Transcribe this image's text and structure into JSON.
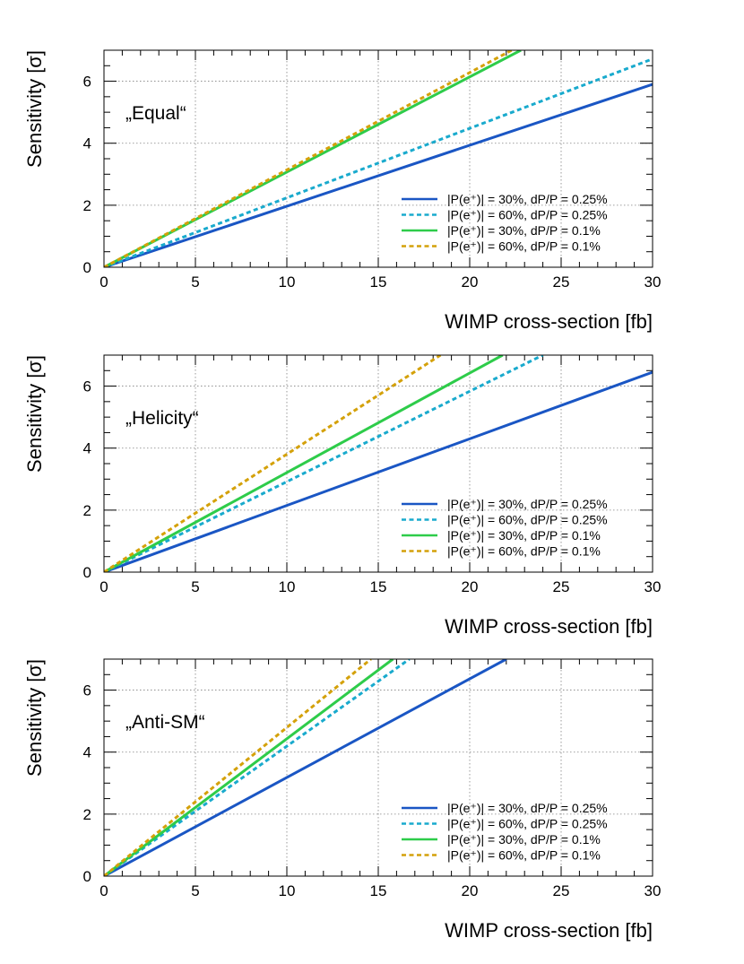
{
  "chart_data": [
    {
      "type": "line",
      "annotation": "„Equal“",
      "xlabel": "WIMP cross-section [fb]",
      "ylabel": "Sensitivity  [σ]",
      "xlim": [
        0,
        30
      ],
      "ylim": [
        0,
        7
      ],
      "xticks": [
        "0",
        "5",
        "10",
        "15",
        "20",
        "25",
        "30"
      ],
      "yticks": [
        "0",
        "2",
        "4",
        "6"
      ],
      "grid": true,
      "legend_position": "bottom-right",
      "series": [
        {
          "name": "|P(e⁺)| = 30%, dP/P = 0.25%",
          "color": "#1a56c4",
          "dash": "solid",
          "x": [
            0,
            30
          ],
          "y": [
            0,
            5.9
          ]
        },
        {
          "name": "|P(e⁺)| = 60%, dP/P = 0.25%",
          "color": "#19aacd",
          "dash": "dashed",
          "x": [
            0,
            30
          ],
          "y": [
            0,
            6.72
          ]
        },
        {
          "name": "|P(e⁺)| = 30%, dP/P = 0.1%",
          "color": "#2ecc4a",
          "dash": "solid",
          "x": [
            0,
            22.8
          ],
          "y": [
            0,
            7.0
          ]
        },
        {
          "name": "|P(e⁺)| = 60%, dP/P = 0.1%",
          "color": "#d4a10a",
          "dash": "dashed",
          "x": [
            0,
            22.3
          ],
          "y": [
            0,
            7.0
          ]
        }
      ]
    },
    {
      "type": "line",
      "annotation": "„Helicity“",
      "xlabel": "WIMP cross-section [fb]",
      "ylabel": "Sensitivity  [σ]",
      "xlim": [
        0,
        30
      ],
      "ylim": [
        0,
        7
      ],
      "xticks": [
        "0",
        "5",
        "10",
        "15",
        "20",
        "25",
        "30"
      ],
      "yticks": [
        "0",
        "2",
        "4",
        "6"
      ],
      "grid": true,
      "legend_position": "bottom-right",
      "series": [
        {
          "name": "|P(e⁺)| = 30%, dP/P = 0.25%",
          "color": "#1a56c4",
          "dash": "solid",
          "x": [
            0,
            30
          ],
          "y": [
            0,
            6.45
          ]
        },
        {
          "name": "|P(e⁺)| = 60%, dP/P = 0.25%",
          "color": "#19aacd",
          "dash": "dashed",
          "x": [
            0,
            24.0
          ],
          "y": [
            0,
            7.0
          ]
        },
        {
          "name": "|P(e⁺)| = 30%, dP/P = 0.1%",
          "color": "#2ecc4a",
          "dash": "solid",
          "x": [
            0,
            21.8
          ],
          "y": [
            0,
            7.0
          ]
        },
        {
          "name": "|P(e⁺)| = 60%, dP/P = 0.1%",
          "color": "#d4a10a",
          "dash": "dashed",
          "x": [
            0,
            18.4
          ],
          "y": [
            0,
            7.0
          ]
        }
      ]
    },
    {
      "type": "line",
      "annotation": "„Anti-SM“",
      "xlabel": "WIMP cross-section [fb]",
      "ylabel": "Sensitivity  [σ]",
      "xlim": [
        0,
        30
      ],
      "ylim": [
        0,
        7
      ],
      "xticks": [
        "0",
        "5",
        "10",
        "15",
        "20",
        "25",
        "30"
      ],
      "yticks": [
        "0",
        "2",
        "4",
        "6"
      ],
      "grid": true,
      "legend_position": "bottom-right",
      "series": [
        {
          "name": "|P(e⁺)| = 30%, dP/P = 0.25%",
          "color": "#1a56c4",
          "dash": "solid",
          "x": [
            0,
            22.0
          ],
          "y": [
            0,
            7.0
          ]
        },
        {
          "name": "|P(e⁺)| = 60%, dP/P = 0.25%",
          "color": "#19aacd",
          "dash": "dashed",
          "x": [
            0,
            16.7
          ],
          "y": [
            0,
            7.0
          ]
        },
        {
          "name": "|P(e⁺)| = 30%, dP/P = 0.1%",
          "color": "#2ecc4a",
          "dash": "solid",
          "x": [
            0,
            15.8
          ],
          "y": [
            0,
            7.0
          ]
        },
        {
          "name": "|P(e⁺)| = 60%, dP/P = 0.1%",
          "color": "#d4a10a",
          "dash": "dashed",
          "x": [
            0,
            14.6
          ],
          "y": [
            0,
            7.0
          ]
        }
      ]
    }
  ]
}
